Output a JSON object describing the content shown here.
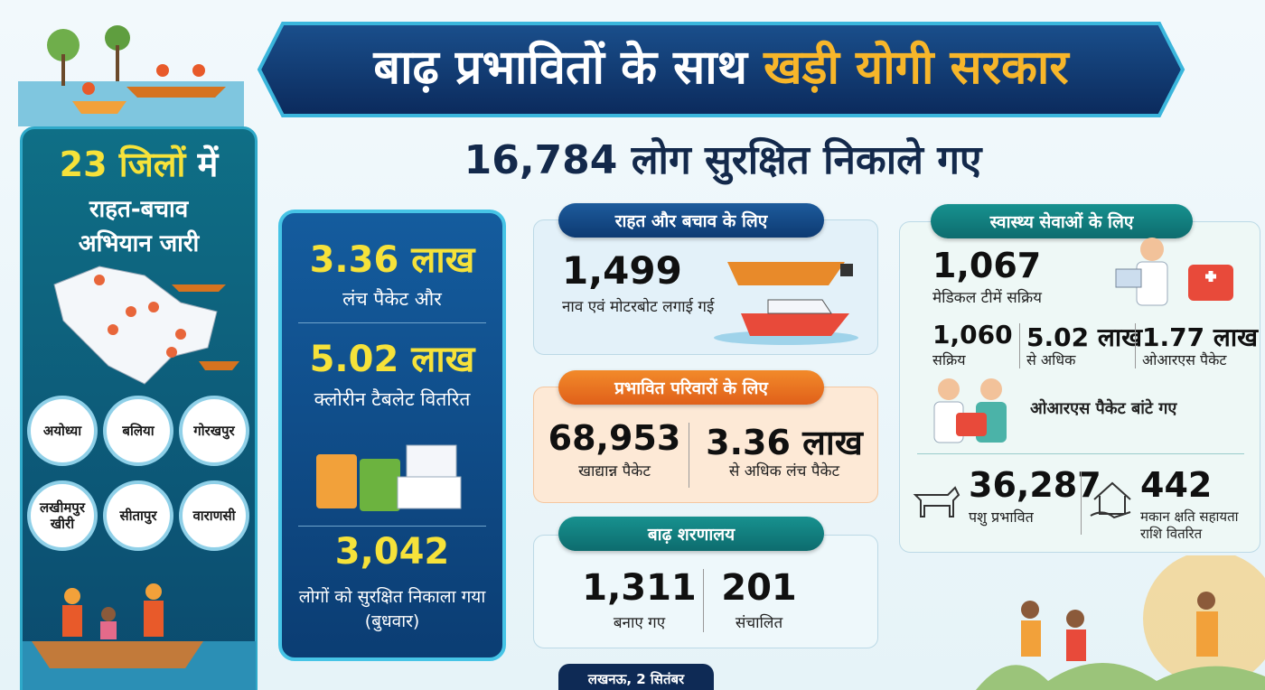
{
  "header": {
    "title_part1": "बाढ़ प्रभावितों के साथ",
    "title_part2": "खड़ी योगी सरकार",
    "subtitle": "16,784 लोग सुरक्षित निकाले गए"
  },
  "left_panel": {
    "count": "23 जिलों",
    "count_suffix": "में",
    "text_line1": "राहत-बचाव",
    "text_line2": "अभियान जारी",
    "districts": [
      "अयोध्या",
      "बलिया",
      "गोरखपुर",
      "लखीमपुर खीरी",
      "सीतापुर",
      "वाराणसी"
    ]
  },
  "middle_panel": {
    "items": [
      {
        "value": "3.36 लाख",
        "label": "लंच पैकेट और"
      },
      {
        "value": "5.02 लाख",
        "label": "क्लोरीन टैबलेट वितरित"
      },
      {
        "value": "3,042",
        "label": "लोगों को सुरक्षित निकाला गया (बुधवार)"
      }
    ]
  },
  "relief": {
    "heading": "राहत और बचाव के लिए",
    "value": "1,499",
    "label": "नाव एवं मोटरबोट लगाई गई"
  },
  "families": {
    "heading": "प्रभावित परिवारों के लिए",
    "items": [
      {
        "value": "68,953",
        "label": "खाद्यान्न पैकेट"
      },
      {
        "value": "3.36 लाख",
        "label": "से अधिक लंच पैकेट"
      }
    ]
  },
  "shelters": {
    "heading": "बाढ़ शरणालय",
    "items": [
      {
        "value": "1,311",
        "label": "बनाए गए"
      },
      {
        "value": "201",
        "label": "संचालित"
      }
    ]
  },
  "health": {
    "heading": "स्वास्थ्य सेवाओं के लिए",
    "main": {
      "value": "1,067",
      "label": "मेडिकल टीमें सक्रिय"
    },
    "items": [
      {
        "value": "1,060",
        "label": "सक्रिय"
      },
      {
        "value": "5.02 लाख",
        "label": "से अधिक"
      },
      {
        "value": "1.77 लाख",
        "label": "ओआरएस पैकेट"
      }
    ],
    "note": "ओआरएस पैकेट बांटे गए",
    "bottom": [
      {
        "value": "36,287",
        "label": "पशु प्रभावित"
      },
      {
        "value": "442",
        "label": "मकान क्षति सहायता राशि वितरित"
      }
    ]
  },
  "footer": {
    "dateline": "लखनऊ, 2 सितंबर"
  }
}
